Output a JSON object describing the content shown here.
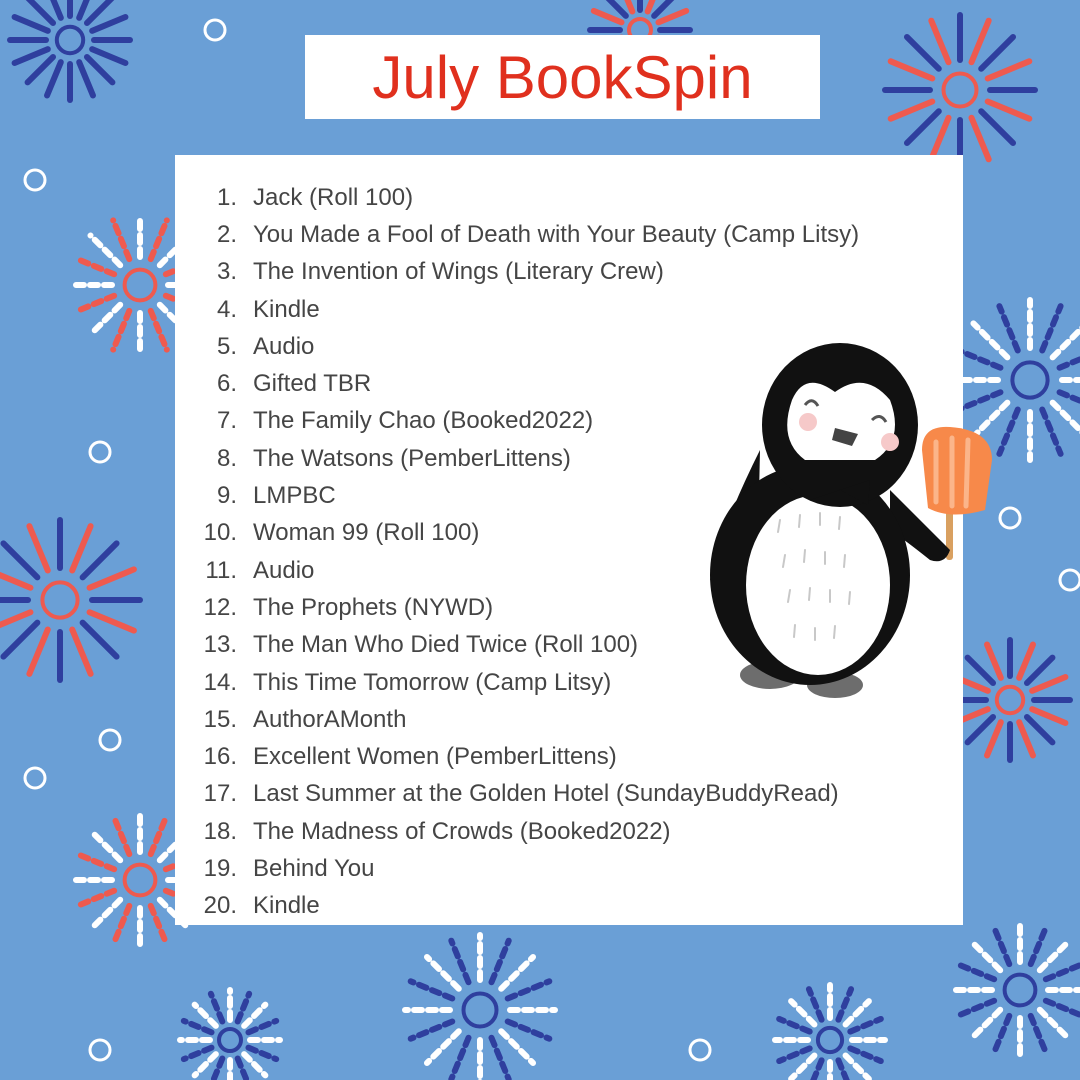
{
  "title": "July BookSpin",
  "colors": {
    "background": "#6a9fd6",
    "title_red": "#e0301e",
    "firework_navy": "#2f3f9e",
    "firework_red": "#ee5a4f",
    "firework_white": "#ffffff"
  },
  "illustration": "penguin holding orange popsicle",
  "items": [
    {
      "num": "1.",
      "text": "Jack (Roll 100)"
    },
    {
      "num": "2.",
      "text": "You Made a Fool of Death with Your Beauty (Camp Litsy)"
    },
    {
      "num": "3.",
      "text": "The Invention of Wings (Literary Crew)"
    },
    {
      "num": "4.",
      "text": "Kindle"
    },
    {
      "num": "5.",
      "text": "Audio"
    },
    {
      "num": "6.",
      "text": "Gifted TBR"
    },
    {
      "num": "7.",
      "text": "The Family Chao (Booked2022)"
    },
    {
      "num": "8.",
      "text": "The Watsons (PemberLittens)"
    },
    {
      "num": "9.",
      "text": "LMPBC"
    },
    {
      "num": "10.",
      "text": "Woman 99 (Roll 100)"
    },
    {
      "num": "11.",
      "text": "Audio"
    },
    {
      "num": "12.",
      "text": "The Prophets (NYWD)"
    },
    {
      "num": "13.",
      "text": "The Man Who Died Twice (Roll 100)"
    },
    {
      "num": "14.",
      "text": "This Time Tomorrow (Camp Litsy)"
    },
    {
      "num": "15.",
      "text": "AuthorAMonth"
    },
    {
      "num": "16.",
      "text": "Excellent Women (PemberLittens)"
    },
    {
      "num": "17.",
      "text": "Last Summer at the Golden Hotel (SundayBuddyRead)"
    },
    {
      "num": "18.",
      "text": "The Madness of Crowds (Booked2022)"
    },
    {
      "num": "19.",
      "text": "Behind You"
    },
    {
      "num": "20.",
      "text": "Kindle"
    }
  ]
}
